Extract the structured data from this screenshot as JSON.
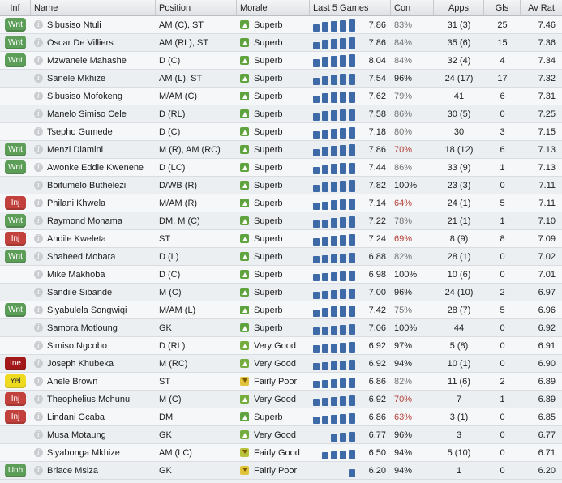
{
  "headers": {
    "inf": "Inf",
    "name": "Name",
    "position": "Position",
    "morale": "Morale",
    "last5": "Last 5 Games",
    "con": "Con",
    "apps": "Apps",
    "gls": "Gls",
    "avrat": "Av Rat"
  },
  "colors": {
    "Wnt": "#5c9d58",
    "Inj": "#c2413d",
    "Ine": "#a21818",
    "Yel": "#eedb20",
    "Unh": "#5c9d58",
    "Superb": "#5fa33e",
    "Very Good": "#74ad3e",
    "Fairly Good": "#b9c33a",
    "Fairly Poor": "#e1c33c",
    "bar": "#3f6aa8"
  },
  "players": [
    {
      "inf": "Wnt",
      "name": "Sibusiso Ntuli",
      "position": "AM (C), ST",
      "morale": "Superb",
      "last5": "7.86",
      "form": [
        0.55,
        0.7,
        0.75,
        0.85,
        0.9
      ],
      "con": "83%",
      "con_tone": "grey",
      "apps": "31 (3)",
      "gls": "25",
      "avrat": "7.46"
    },
    {
      "inf": "Wnt",
      "name": "Oscar De Villiers",
      "position": "AM (RL), ST",
      "morale": "Superb",
      "last5": "7.86",
      "form": [
        0.55,
        0.7,
        0.75,
        0.85,
        0.9
      ],
      "con": "84%",
      "con_tone": "grey",
      "apps": "35 (6)",
      "gls": "15",
      "avrat": "7.36"
    },
    {
      "inf": "Wnt",
      "name": "Mzwanele Mahashe",
      "position": "D (C)",
      "morale": "Superb",
      "last5": "8.04",
      "form": [
        0.6,
        0.75,
        0.8,
        0.9,
        0.95
      ],
      "con": "84%",
      "con_tone": "grey",
      "apps": "32 (4)",
      "gls": "4",
      "avrat": "7.34"
    },
    {
      "inf": "",
      "name": "Sanele Mkhize",
      "position": "AM (L), ST",
      "morale": "Superb",
      "last5": "7.54",
      "form": [
        0.55,
        0.65,
        0.75,
        0.8,
        0.85
      ],
      "con": "96%",
      "con_tone": "normal",
      "apps": "24 (17)",
      "gls": "17",
      "avrat": "7.32"
    },
    {
      "inf": "",
      "name": "Sibusiso Mofokeng",
      "position": "M/AM (C)",
      "morale": "Superb",
      "last5": "7.62",
      "form": [
        0.55,
        0.7,
        0.75,
        0.8,
        0.85
      ],
      "con": "79%",
      "con_tone": "grey",
      "apps": "41",
      "gls": "6",
      "avrat": "7.31"
    },
    {
      "inf": "",
      "name": "Manelo Simiso Cele",
      "position": "D (RL)",
      "morale": "Superb",
      "last5": "7.58",
      "form": [
        0.55,
        0.7,
        0.75,
        0.8,
        0.85
      ],
      "con": "86%",
      "con_tone": "grey",
      "apps": "30 (5)",
      "gls": "0",
      "avrat": "7.25"
    },
    {
      "inf": "",
      "name": "Tsepho Gumede",
      "position": "D (C)",
      "morale": "Superb",
      "last5": "7.18",
      "form": [
        0.55,
        0.6,
        0.7,
        0.75,
        0.8
      ],
      "con": "80%",
      "con_tone": "grey",
      "apps": "30",
      "gls": "3",
      "avrat": "7.15"
    },
    {
      "inf": "Wnt",
      "name": "Menzi Dlamini",
      "position": "M (R), AM (RC)",
      "morale": "Superb",
      "last5": "7.86",
      "form": [
        0.55,
        0.7,
        0.75,
        0.85,
        0.9
      ],
      "con": "70%",
      "con_tone": "red",
      "apps": "18 (12)",
      "gls": "6",
      "avrat": "7.13"
    },
    {
      "inf": "Wnt",
      "name": "Awonke Eddie Kwenene",
      "position": "D (LC)",
      "morale": "Superb",
      "last5": "7.44",
      "form": [
        0.55,
        0.65,
        0.75,
        0.8,
        0.85
      ],
      "con": "86%",
      "con_tone": "grey",
      "apps": "33 (9)",
      "gls": "1",
      "avrat": "7.13"
    },
    {
      "inf": "",
      "name": "Boitumelo Buthelezi",
      "position": "D/WB (R)",
      "morale": "Superb",
      "last5": "7.82",
      "form": [
        0.55,
        0.7,
        0.75,
        0.85,
        0.9
      ],
      "con": "100%",
      "con_tone": "normal",
      "apps": "23 (3)",
      "gls": "0",
      "avrat": "7.11"
    },
    {
      "inf": "Inj",
      "name": "Philani Khwela",
      "position": "M/AM (R)",
      "morale": "Superb",
      "last5": "7.14",
      "form": [
        0.55,
        0.6,
        0.7,
        0.75,
        0.8
      ],
      "con": "64%",
      "con_tone": "red",
      "apps": "24 (1)",
      "gls": "5",
      "avrat": "7.11"
    },
    {
      "inf": "Wnt",
      "name": "Raymond Monama",
      "position": "DM, M (C)",
      "morale": "Superb",
      "last5": "7.22",
      "form": [
        0.55,
        0.6,
        0.7,
        0.75,
        0.8
      ],
      "con": "78%",
      "con_tone": "grey",
      "apps": "21 (1)",
      "gls": "1",
      "avrat": "7.10"
    },
    {
      "inf": "Inj",
      "name": "Andile Kweleta",
      "position": "ST",
      "morale": "Superb",
      "last5": "7.24",
      "form": [
        0.55,
        0.6,
        0.7,
        0.75,
        0.8
      ],
      "con": "69%",
      "con_tone": "red",
      "apps": "8 (9)",
      "gls": "8",
      "avrat": "7.09"
    },
    {
      "inf": "Wnt",
      "name": "Shaheed Mobara",
      "position": "D (L)",
      "morale": "Superb",
      "last5": "6.88",
      "form": [
        0.55,
        0.6,
        0.65,
        0.7,
        0.75
      ],
      "con": "82%",
      "con_tone": "grey",
      "apps": "28 (1)",
      "gls": "0",
      "avrat": "7.02"
    },
    {
      "inf": "",
      "name": "Mike Makhoba",
      "position": "D (C)",
      "morale": "Superb",
      "last5": "6.98",
      "form": [
        0.55,
        0.6,
        0.65,
        0.7,
        0.75
      ],
      "con": "100%",
      "con_tone": "normal",
      "apps": "10 (6)",
      "gls": "0",
      "avrat": "7.01"
    },
    {
      "inf": "",
      "name": "Sandile Sibande",
      "position": "M (C)",
      "morale": "Superb",
      "last5": "7.00",
      "form": [
        0.55,
        0.6,
        0.65,
        0.7,
        0.75
      ],
      "con": "96%",
      "con_tone": "normal",
      "apps": "24 (10)",
      "gls": "2",
      "avrat": "6.97"
    },
    {
      "inf": "Wnt",
      "name": "Siyabulela Songwiqi",
      "position": "M/AM (L)",
      "morale": "Superb",
      "last5": "7.42",
      "form": [
        0.55,
        0.65,
        0.75,
        0.8,
        0.85
      ],
      "con": "75%",
      "con_tone": "grey",
      "apps": "28 (7)",
      "gls": "5",
      "avrat": "6.96"
    },
    {
      "inf": "",
      "name": "Samora Motloung",
      "position": "GK",
      "morale": "Superb",
      "last5": "7.06",
      "form": [
        0.55,
        0.6,
        0.65,
        0.7,
        0.75
      ],
      "con": "100%",
      "con_tone": "normal",
      "apps": "44",
      "gls": "0",
      "avrat": "6.92"
    },
    {
      "inf": "",
      "name": "Simiso Ngcobo",
      "position": "D (RL)",
      "morale": "Very Good",
      "last5": "6.92",
      "form": [
        0.55,
        0.6,
        0.65,
        0.7,
        0.75
      ],
      "con": "97%",
      "con_tone": "normal",
      "apps": "5 (8)",
      "gls": "0",
      "avrat": "6.91"
    },
    {
      "inf": "Ine",
      "name": "Joseph Khubeka",
      "position": "M (RC)",
      "morale": "Very Good",
      "last5": "6.92",
      "form": [
        0.55,
        0.6,
        0.65,
        0.7,
        0.75
      ],
      "con": "94%",
      "con_tone": "normal",
      "apps": "10 (1)",
      "gls": "0",
      "avrat": "6.90"
    },
    {
      "inf": "Yel",
      "name": "Anele Brown",
      "position": "ST",
      "morale": "Fairly Poor",
      "last5": "6.86",
      "form": [
        0.55,
        0.6,
        0.65,
        0.7,
        0.75
      ],
      "con": "82%",
      "con_tone": "grey",
      "apps": "11 (6)",
      "gls": "2",
      "avrat": "6.89"
    },
    {
      "inf": "Inj",
      "name": "Theophelius Mchunu",
      "position": "M (C)",
      "morale": "Very Good",
      "last5": "6.92",
      "form": [
        0.55,
        0.6,
        0.65,
        0.7,
        0.75
      ],
      "con": "70%",
      "con_tone": "red",
      "apps": "7",
      "gls": "1",
      "avrat": "6.89"
    },
    {
      "inf": "Inj",
      "name": "Lindani Gcaba",
      "position": "DM",
      "morale": "Superb",
      "last5": "6.86",
      "form": [
        0.55,
        0.6,
        0.65,
        0.7,
        0.75
      ],
      "con": "63%",
      "con_tone": "red",
      "apps": "3 (1)",
      "gls": "0",
      "avrat": "6.85"
    },
    {
      "inf": "",
      "name": "Musa Motaung",
      "position": "GK",
      "morale": "Very Good",
      "last5": "6.77",
      "form": [
        null,
        null,
        0.6,
        0.65,
        0.7
      ],
      "con": "96%",
      "con_tone": "normal",
      "apps": "3",
      "gls": "0",
      "avrat": "6.77"
    },
    {
      "inf": "",
      "name": "Siyabonga Mkhize",
      "position": "AM (LC)",
      "morale": "Fairly Good",
      "last5": "6.50",
      "form": [
        null,
        0.55,
        0.6,
        0.65,
        0.7
      ],
      "con": "94%",
      "con_tone": "normal",
      "apps": "5 (10)",
      "gls": "0",
      "avrat": "6.71"
    },
    {
      "inf": "Unh",
      "name": "Briace Msiza",
      "position": "GK",
      "morale": "Fairly Poor",
      "last5": "6.20",
      "form": [
        null,
        null,
        null,
        null,
        0.6
      ],
      "con": "94%",
      "con_tone": "normal",
      "apps": "1",
      "gls": "0",
      "avrat": "6.20"
    }
  ]
}
